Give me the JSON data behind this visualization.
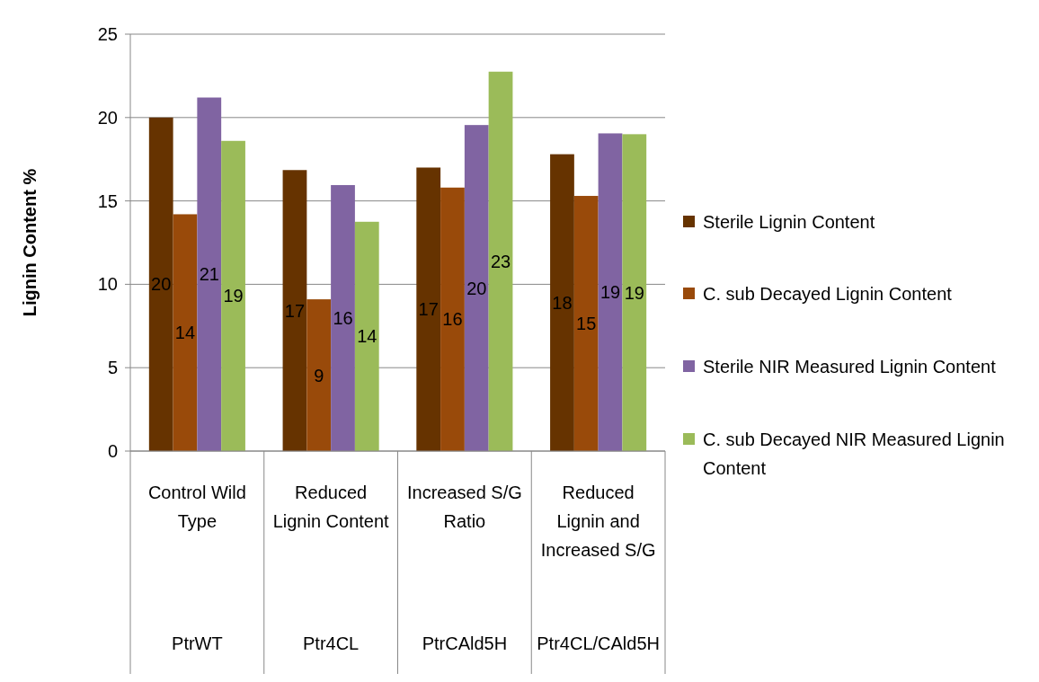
{
  "chart_data": {
    "type": "bar",
    "ylabel": "Lignin Content %",
    "categories": [
      "Control Wild Type\nPtrWT",
      "Reduced Lignin Content\nPtr4CL",
      "Increased S/G Ratio\nPtrCAld5H",
      "Reduced Lignin and Increased S/G\nPtr4CL/CAld5H"
    ],
    "series": [
      {
        "name": "Sterile Lignin Content",
        "color": "#663300",
        "values": [
          20.0,
          16.85,
          17.0,
          17.8
        ],
        "value_labels": [
          "20",
          "17",
          "17",
          "18"
        ]
      },
      {
        "name": "C. sub Decayed Lignin Content",
        "color": "#994a0a",
        "values": [
          14.2,
          9.1,
          15.8,
          15.3
        ],
        "value_labels": [
          "14",
          "9",
          "16",
          "15"
        ]
      },
      {
        "name": "Sterile NIR Measured Lignin Content",
        "color": "#8064a2",
        "values": [
          21.2,
          15.95,
          19.55,
          19.05
        ],
        "value_labels": [
          "21",
          "16",
          "20",
          "19"
        ]
      },
      {
        "name": "C. sub Decayed NIR Measured Lignin Content",
        "color": "#9bbb59",
        "values": [
          18.6,
          13.75,
          22.75,
          19.0
        ],
        "value_labels": [
          "19",
          "14",
          "23",
          "19"
        ]
      }
    ],
    "ylim": [
      0,
      25
    ],
    "yticks": [
      0,
      5,
      10,
      15,
      20,
      25
    ],
    "grid": "y",
    "legend": "right"
  }
}
